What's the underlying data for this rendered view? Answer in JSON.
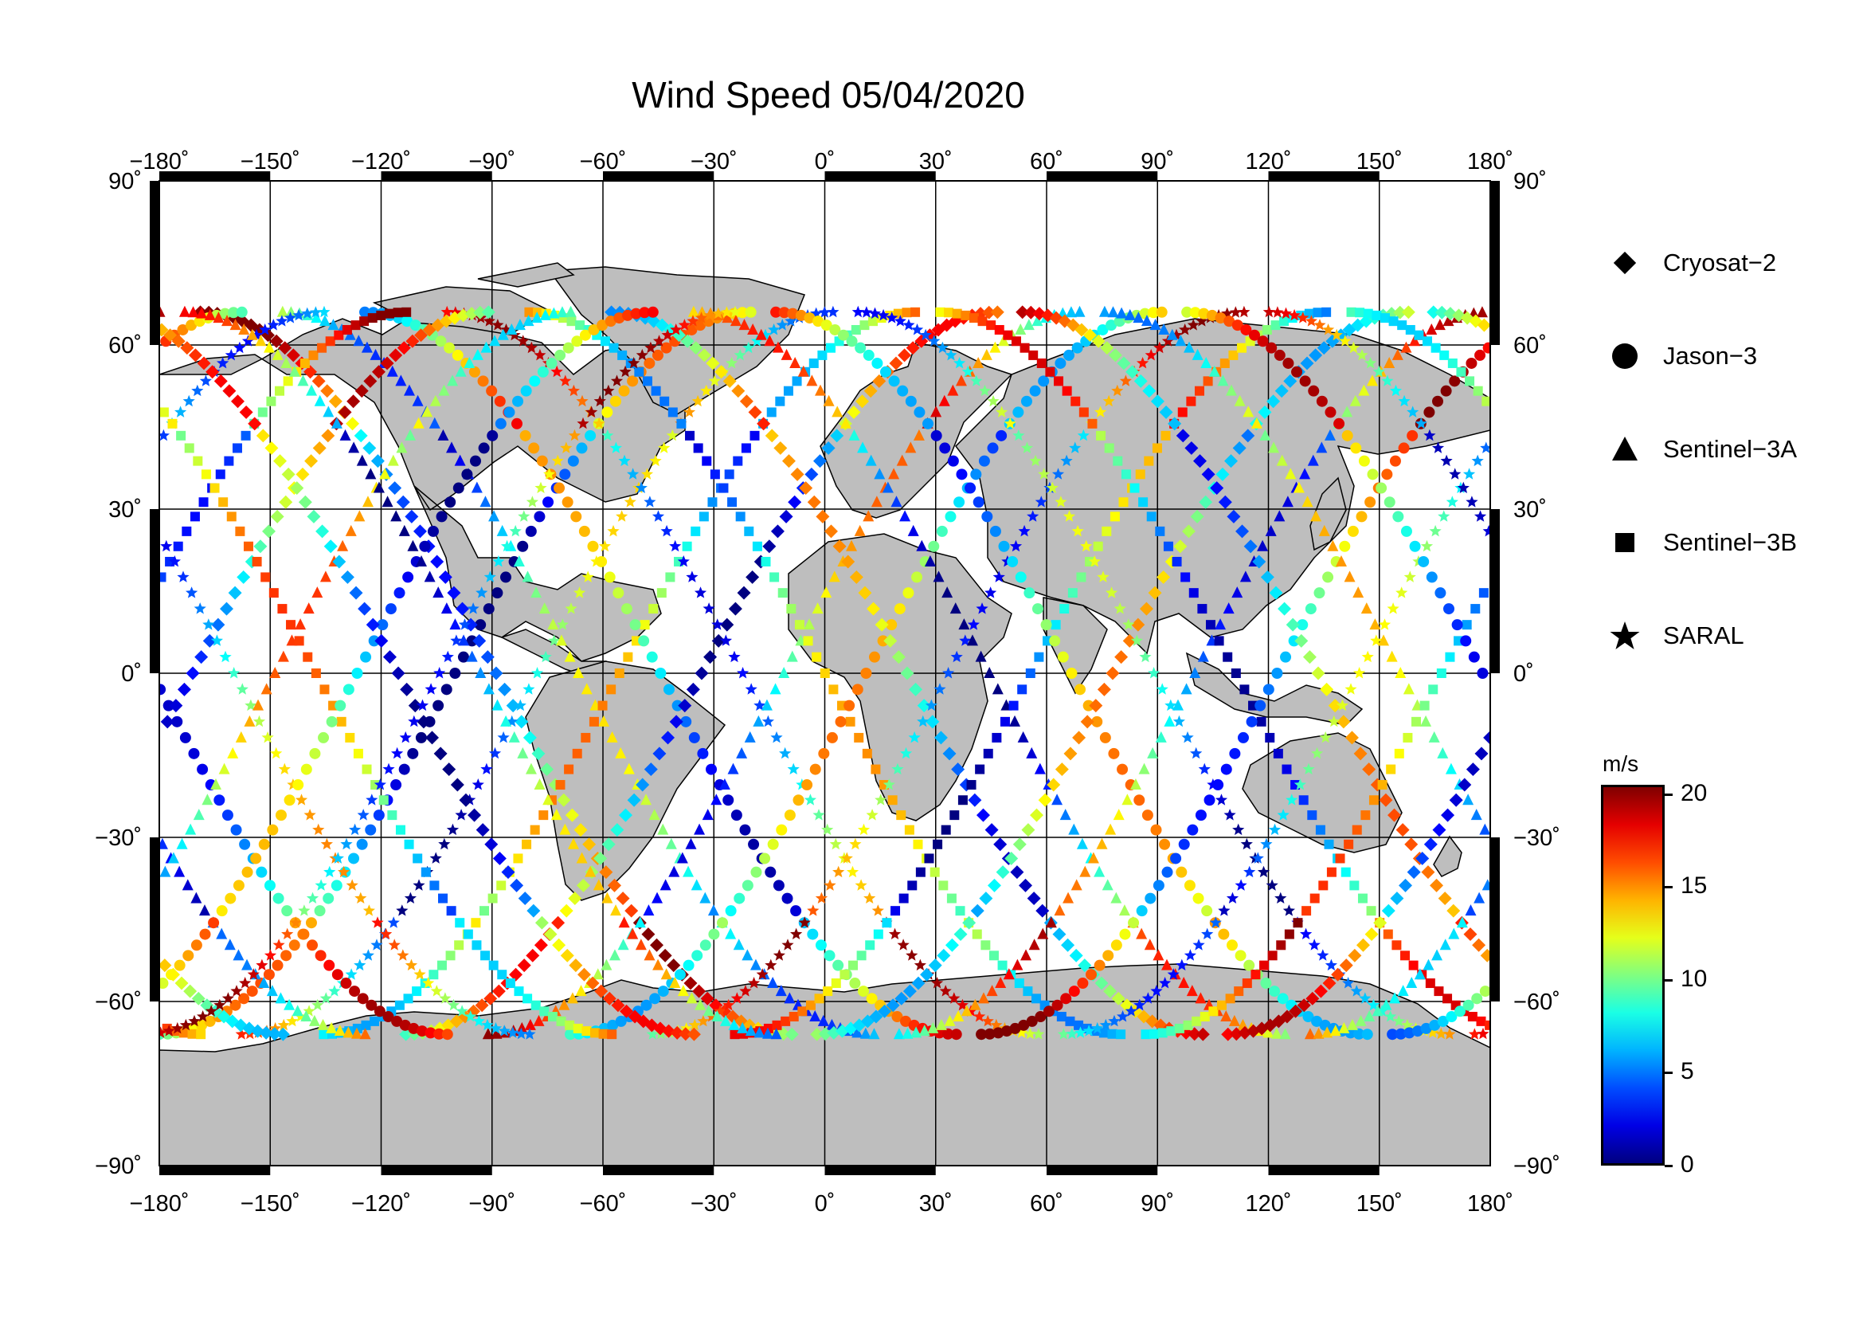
{
  "title": "Wind Speed 05/04/2020",
  "axes": {
    "lon_ticks": [
      "−180˚",
      "−150˚",
      "−120˚",
      "−90˚",
      "−60˚",
      "−30˚",
      "0˚",
      "30˚",
      "60˚",
      "90˚",
      "120˚",
      "150˚",
      "180˚"
    ],
    "lon_values": [
      -180,
      -150,
      -120,
      -90,
      -60,
      -30,
      0,
      30,
      60,
      90,
      120,
      150,
      180
    ],
    "lat_ticks": [
      "90˚",
      "60˚",
      "30˚",
      "0˚",
      "−30˚",
      "−60˚",
      "−90˚"
    ],
    "lat_values": [
      90,
      60,
      30,
      0,
      -30,
      -60,
      -90
    ]
  },
  "legend": [
    {
      "label": "Cryosat−2",
      "symbol": "diamond"
    },
    {
      "label": "Jason−3",
      "symbol": "circle"
    },
    {
      "label": "Sentinel−3A",
      "symbol": "triangle"
    },
    {
      "label": "Sentinel−3B",
      "symbol": "square"
    },
    {
      "label": "SARAL",
      "symbol": "star"
    }
  ],
  "colorbar": {
    "unit": "m/s",
    "ticks": [
      "20",
      "15",
      "10",
      "5",
      "0"
    ],
    "tick_values": [
      20,
      15,
      10,
      5,
      0
    ],
    "range": [
      0,
      20.5
    ],
    "colormap": "jet",
    "colors": [
      "#00008f",
      "#0000ff",
      "#00ffff",
      "#ffff00",
      "#ff0000",
      "#800000"
    ]
  },
  "colors": {
    "land": "#bebebe",
    "ocean": "#ffffff",
    "frame": "#000000"
  }
}
